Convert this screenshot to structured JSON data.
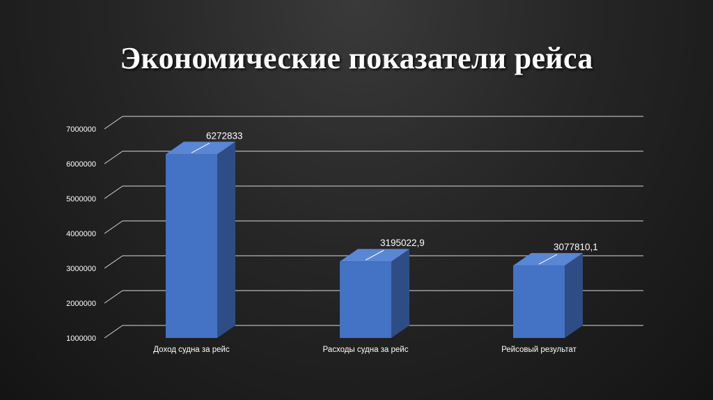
{
  "slide": {
    "title": "Экономические показатели рейса"
  },
  "chart_data": {
    "type": "bar",
    "style": "3d-column",
    "categories": [
      "Доход судна за рейс",
      "Расходы судна за рейс",
      "Рейсовый результат"
    ],
    "values": [
      6272833,
      3195022.9,
      3077810.1
    ],
    "data_labels": [
      "6272833",
      "3195022,9",
      "3077810,1"
    ],
    "y_ticks": [
      "1000000",
      "2000000",
      "3000000",
      "4000000",
      "5000000",
      "6000000",
      "7000000"
    ],
    "ylim": [
      1000000,
      7000000
    ],
    "title": "",
    "xlabel": "",
    "ylabel": "",
    "grid": true,
    "legend": "none",
    "colors": {
      "bar_front": "#4472C4",
      "bar_side": "#2E4D87",
      "bar_top": "#5A86D6",
      "gridline": "#d9d9d9",
      "text": "#ffffff"
    }
  }
}
